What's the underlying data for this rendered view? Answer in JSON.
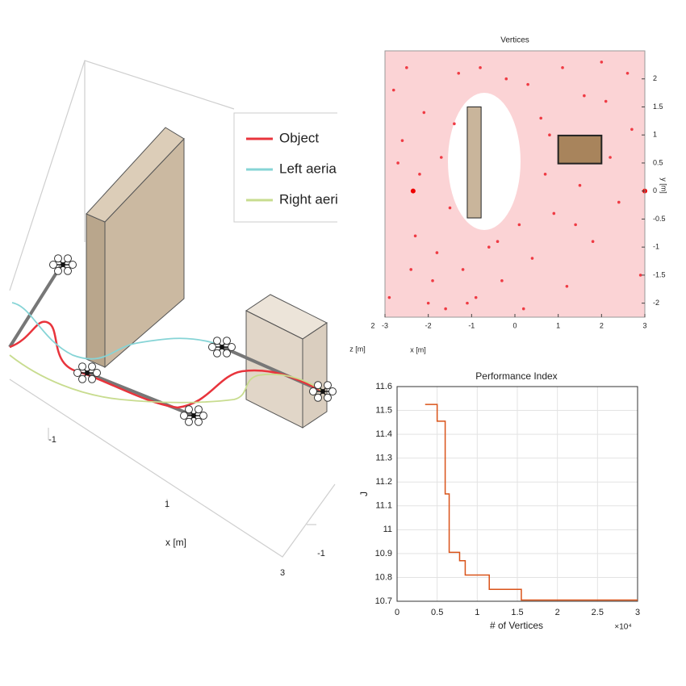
{
  "chart_data": [
    {
      "type": "scene3d",
      "series": [
        {
          "name": "Object",
          "color": "#e8343c"
        },
        {
          "name": "Left aerial",
          "color": "#86d4d6"
        },
        {
          "name": "Right aeri",
          "color": "#c8dc8f"
        }
      ],
      "xlabel": "x [m]",
      "xticks": [
        -1,
        1,
        3
      ],
      "yticks": [
        -1
      ]
    },
    {
      "type": "scatter",
      "title": "Vertices",
      "xlabel": "x [m]",
      "ylabel": "y [m]",
      "zlabel": "z [m]",
      "zticks": [
        2
      ],
      "color": "#ef3b44",
      "xlim": [
        -3,
        3
      ],
      "xticks": [
        -3,
        -2,
        -1,
        0,
        1,
        2,
        3
      ],
      "ylim": [
        -2.25,
        2.5
      ],
      "yticks": [
        -2,
        -1.5,
        -1,
        -0.5,
        0,
        0.5,
        1,
        1.5,
        2
      ],
      "x": [
        -2.8,
        -2.6,
        -2.3,
        -2.1,
        -1.9,
        -1.7,
        -1.5,
        -1.3,
        -2.9,
        -2.5,
        -2.2,
        -1.8,
        -1.4,
        -1.2,
        -0.9,
        -0.6,
        -0.3,
        0.1,
        0.4,
        0.7,
        0.9,
        1.2,
        1.5,
        1.8,
        2.1,
        2.4,
        2.7,
        2.9,
        -2.7,
        -2.0,
        -1.6,
        -0.8,
        -0.2,
        0.3,
        0.6,
        1.1,
        1.6,
        2.2,
        2.6,
        0.2,
        -0.4,
        1.4,
        2.0,
        -2.4,
        -1.1,
        0.8
      ],
      "y": [
        1.8,
        0.9,
        -0.8,
        1.4,
        -1.6,
        0.6,
        -0.3,
        2.1,
        -1.9,
        2.2,
        0.3,
        -1.1,
        1.2,
        -1.4,
        -1.9,
        -1.0,
        -1.6,
        -0.6,
        -1.2,
        0.3,
        -0.4,
        -1.7,
        0.1,
        -0.9,
        1.6,
        -0.2,
        1.1,
        -1.5,
        0.5,
        -2.0,
        -2.1,
        2.2,
        2.0,
        1.9,
        1.3,
        2.2,
        1.7,
        0.6,
        2.1,
        -2.1,
        -0.9,
        -0.6,
        2.3,
        -1.4,
        -2.0,
        1.0
      ],
      "markers": {
        "x": [
          -2.35,
          3
        ],
        "y": [
          0,
          0
        ]
      },
      "obstacles": [
        {
          "x": [
            -1.1,
            -0.78
          ],
          "y": [
            -0.48,
            1.5
          ]
        },
        {
          "x": [
            1,
            2
          ],
          "y": [
            0.49,
            0.99
          ]
        }
      ]
    },
    {
      "type": "step",
      "title": "Performance Index",
      "xlabel": "# of Vertices",
      "ylabel": "J",
      "x_multiplier": "×10⁴",
      "color": "#d95319",
      "grid": true,
      "x": [
        0.35,
        0.5,
        0.6,
        0.65,
        0.78,
        0.85,
        1.15,
        1.55,
        3
      ],
      "values": [
        11.525,
        11.455,
        11.15,
        10.905,
        10.87,
        10.81,
        10.75,
        10.705,
        10.705
      ],
      "xlim": [
        0,
        3
      ],
      "xticks": [
        0,
        0.5,
        1,
        1.5,
        2,
        2.5,
        3
      ],
      "ylim": [
        10.7,
        11.6
      ],
      "yticks": [
        10.7,
        10.8,
        10.9,
        11,
        11.1,
        11.2,
        11.3,
        11.4,
        11.5,
        11.6
      ]
    }
  ]
}
